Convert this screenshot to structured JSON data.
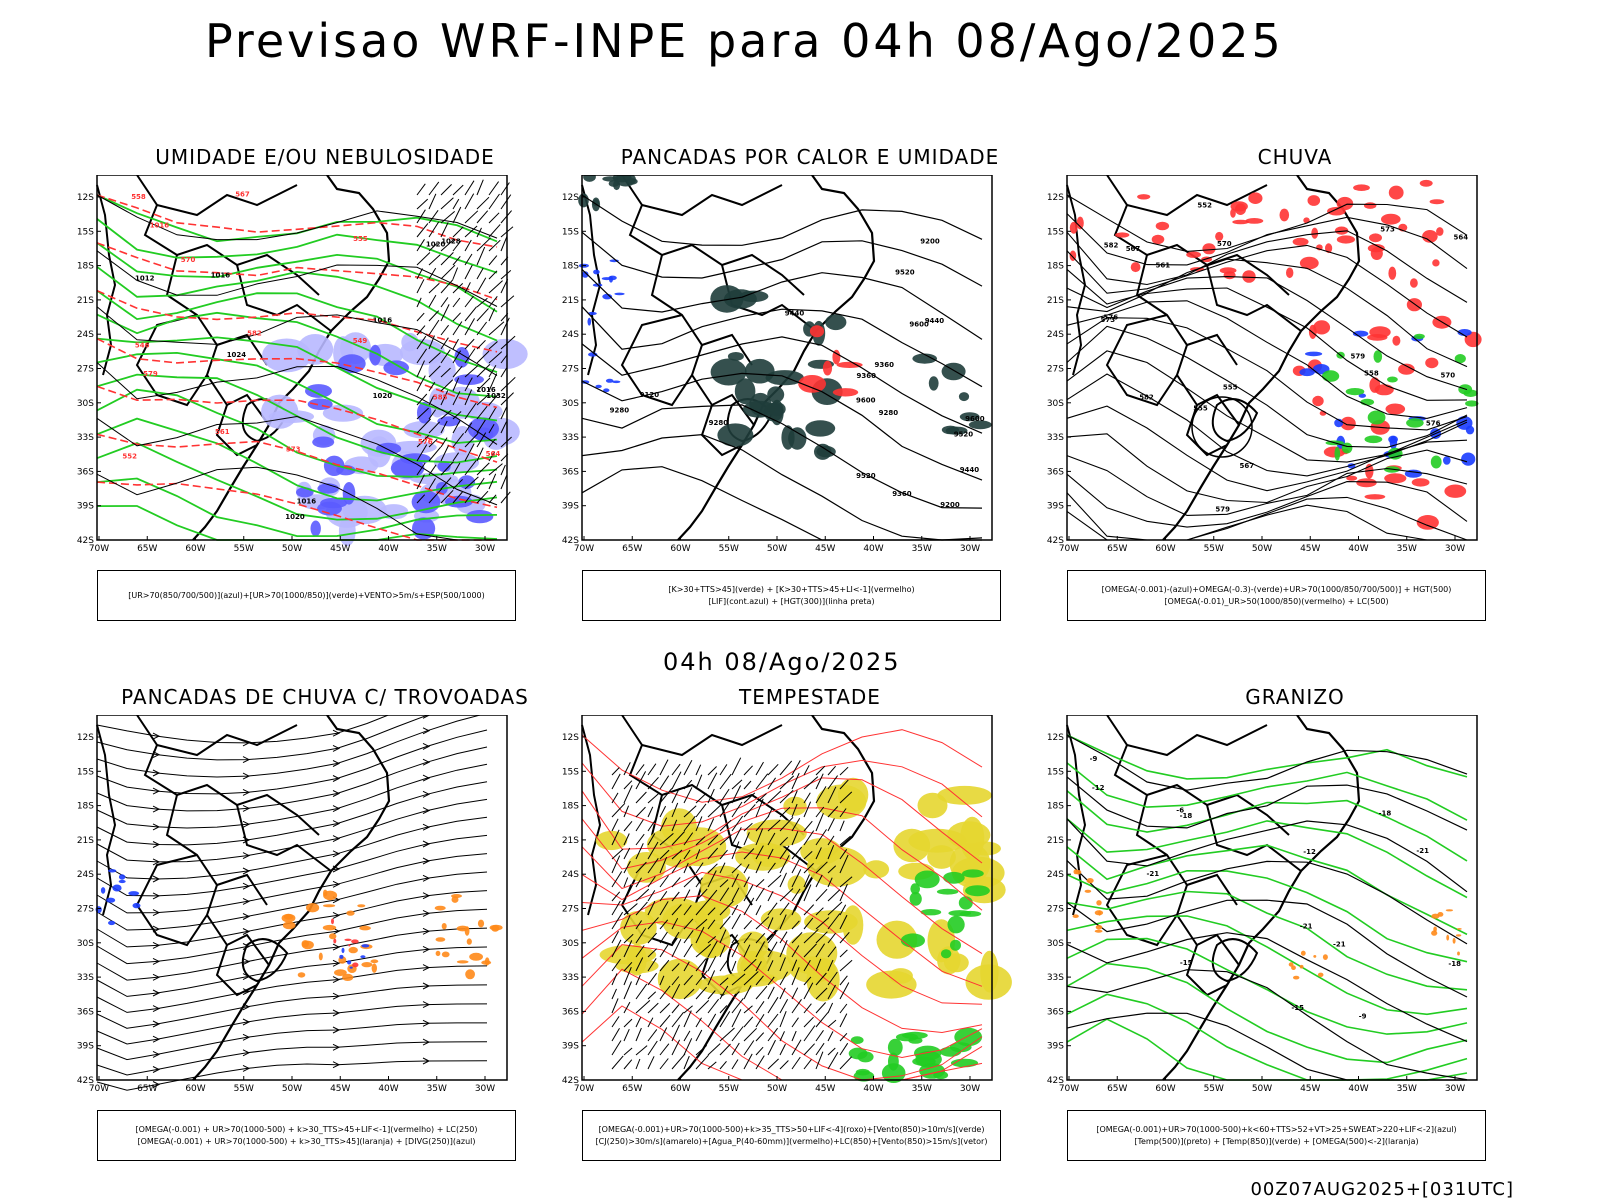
{
  "title": "Previsao WRF-INPE  para 04h 08/Ago/2025",
  "mid_title": "04h 08/Ago/2025",
  "footer": "00Z07AUG2025+[031UTC]",
  "lat_labels": [
    "12S",
    "15S",
    "18S",
    "21S",
    "24S",
    "27S",
    "30S",
    "33S",
    "36S",
    "39S",
    "42S"
  ],
  "lon_labels": [
    "70W",
    "65W",
    "60W",
    "55W",
    "50W",
    "45W",
    "40W",
    "35W",
    "30W"
  ],
  "panels": [
    {
      "title": "UMIDADE E/OU NEBULOSIDADE",
      "legend": [
        "[UR>70(850/700/500)](azul)+[UR>70(1000/850)](verde)+VENTO>5m/s+ESP(500/1000)"
      ],
      "labels": [
        "1012",
        "1016",
        "1016",
        "1016",
        "1020",
        "1020",
        "1020",
        "1024",
        "1028",
        "1032",
        "1016",
        "1016",
        "546",
        "549",
        "552",
        "555",
        "558",
        "561",
        "564",
        "567",
        "570",
        "573",
        "576",
        "579",
        "582",
        "585"
      ]
    },
    {
      "title": "PANCADAS POR CALOR E UMIDADE",
      "legend": [
        "[K>30+TTS>45](verde) + [K>30+TTS>45+LI<-1](vermelho)",
        "[LIF](cont.azul) + [HGT(300)](linha preta)"
      ],
      "labels": [
        "9600",
        "9600",
        "9600",
        "9520",
        "9520",
        "9520",
        "9440",
        "9440",
        "9440",
        "9360",
        "9360",
        "9360",
        "9280",
        "9280",
        "9280",
        "9200",
        "9200",
        "9120"
      ]
    },
    {
      "title": "CHUVA",
      "legend": [
        "[OMEGA(-0.001)-(azul)+OMEGA(-0.3)-(verde)+UR>70(1000/850/700/500)] + HGT(500)",
        "[OMEGA(-0.01)_UR>50(1000/850)(vermelho) + LC(500)"
      ],
      "labels": [
        "582",
        "582",
        "579",
        "579",
        "576",
        "576",
        "573",
        "573",
        "570",
        "570",
        "567",
        "567",
        "564",
        "561",
        "558",
        "555",
        "555",
        "552"
      ]
    },
    {
      "title": "PANCADAS DE CHUVA C/ TROVOADAS",
      "legend": [
        "[OMEGA(-0.001) + UR>70(1000-500) + k>30_TTS>45+LIF<-1](vermelho) + LC(250)",
        "[OMEGA(-0.001) + UR>70(1000-500) + k>30_TTS>45](laranja) + [DIVG(250)](azul)"
      ],
      "labels": []
    },
    {
      "title": "TEMPESTADE",
      "legend": [
        "[OMEGA(-0.001)+UR>70(1000-500)+k>35_TTS>50+LIF<-4](roxo)+[Vento(850)>10m/s](verde)",
        "[CJ(250)>30m/s](amarelo)+[Agua_P(40-60mm)](vermelho)+LC(850)+[Vento(850)>15m/s](vetor)"
      ],
      "labels": []
    },
    {
      "title": "GRANIZO",
      "legend": [
        "[OMEGA(-0.001)+UR>70(1000-500)+k<60+TTS>52+VT>25+SWEAT>220+LIF<-2](azul)",
        "[Temp(500)](preto) + [Temp(850)](verde) + [OMEGA(500)<-2](laranja)"
      ],
      "labels": [
        "-6",
        "-9",
        "-9",
        "-12",
        "-12",
        "-15",
        "-15",
        "-18",
        "-18",
        "-21",
        "-21",
        "-21",
        "-21",
        "-18"
      ]
    }
  ],
  "colors": {
    "contour": "#000000",
    "ur_green": "#22cc22",
    "ur_blue": "#5b5bff",
    "ur_blue_light": "#b8b8ff",
    "red": "#ff3333",
    "dark_teal": "#1f3d3b",
    "blue": "#1a3cff",
    "green": "#22cc22",
    "orange": "#ff8a1a",
    "yellow": "#e5d630"
  }
}
